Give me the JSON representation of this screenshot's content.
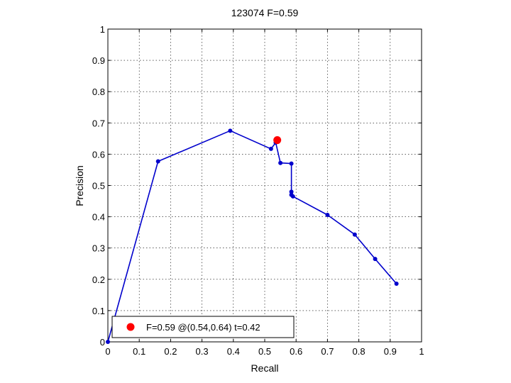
{
  "chart_data": {
    "type": "line",
    "title": "123074 F=0.59",
    "xlabel": "Recall",
    "ylabel": "Precision",
    "xlim": [
      0,
      1
    ],
    "ylim": [
      0,
      1
    ],
    "xticks": [
      "0",
      "0.1",
      "0.2",
      "0.3",
      "0.4",
      "0.5",
      "0.6",
      "0.7",
      "0.8",
      "0.9",
      "1"
    ],
    "yticks": [
      "0",
      "0.1",
      "0.2",
      "0.3",
      "0.4",
      "0.5",
      "0.6",
      "0.7",
      "0.8",
      "0.9",
      "1"
    ],
    "grid": true,
    "legend_position": "bottom-left",
    "series": [
      {
        "color": "#0000cc",
        "points": [
          {
            "x": 0.0,
            "y": 0.0
          },
          {
            "x": 0.16,
            "y": 0.577
          },
          {
            "x": 0.39,
            "y": 0.675
          },
          {
            "x": 0.52,
            "y": 0.617
          },
          {
            "x": 0.535,
            "y": 0.637
          },
          {
            "x": 0.55,
            "y": 0.572
          },
          {
            "x": 0.585,
            "y": 0.57
          },
          {
            "x": 0.585,
            "y": 0.48
          },
          {
            "x": 0.585,
            "y": 0.47
          },
          {
            "x": 0.59,
            "y": 0.465
          },
          {
            "x": 0.7,
            "y": 0.406
          },
          {
            "x": 0.787,
            "y": 0.343
          },
          {
            "x": 0.852,
            "y": 0.265
          },
          {
            "x": 0.92,
            "y": 0.186
          }
        ]
      }
    ],
    "best_point": {
      "x": 0.54,
      "y": 0.645,
      "color": "#ff0000",
      "legend": "F=0.59 @(0.54,0.64) t=0.42"
    }
  }
}
